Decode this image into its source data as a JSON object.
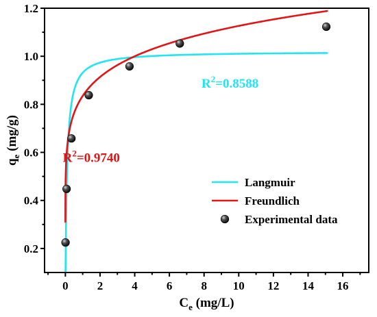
{
  "chart_data": {
    "type": "scatter",
    "xlabel": {
      "main": "C",
      "sub": "e",
      "units": " (mg/L)"
    },
    "ylabel": {
      "main": "q",
      "sub": "e",
      "units": " (mg/g)"
    },
    "xlim": [
      -1.2,
      17.5
    ],
    "ylim": [
      0.1,
      1.2
    ],
    "x_ticks": [
      0,
      2,
      4,
      6,
      8,
      10,
      12,
      14,
      16
    ],
    "y_ticks": [
      0.2,
      0.4,
      0.6,
      0.8,
      1.0,
      1.2
    ],
    "x_tick_labels": [
      "0",
      "2",
      "4",
      "6",
      "8",
      "10",
      "12",
      "14",
      "16"
    ],
    "y_tick_labels": [
      "0.2",
      "0.4",
      "0.6",
      "0.8",
      "1.0",
      "1.2"
    ],
    "grid": false,
    "legend_position": "bottom-right",
    "series": [
      {
        "name": "Experimental data",
        "kind": "scatter",
        "color": "#000000",
        "x": [
          0.01,
          0.07,
          0.35,
          1.35,
          3.7,
          6.6,
          15.05
        ],
        "y": [
          0.225,
          0.448,
          0.658,
          0.838,
          0.958,
          1.053,
          1.123
        ]
      },
      {
        "name": "Langmuir",
        "kind": "line",
        "color": "#22e5f2",
        "model": {
          "qm": 1.02,
          "KL": 10.5
        },
        "x_range": [
          0.0,
          15.1
        ]
      },
      {
        "name": "Freundlich",
        "kind": "line",
        "color": "#e01515",
        "model": {
          "KF": 0.835,
          "inv_n": 0.13
        },
        "x_range": [
          0.0005,
          15.1
        ]
      }
    ],
    "annotations": [
      {
        "text_main": "R",
        "sup": "2",
        "text_rest": "=0.8588",
        "color": "#22e5f2",
        "at": [
          9.5,
          0.87
        ]
      },
      {
        "text_main": "R",
        "sup": "2",
        "text_rest": "=0.9740",
        "color": "#e01515",
        "at": [
          1.5,
          0.56
        ]
      }
    ]
  }
}
